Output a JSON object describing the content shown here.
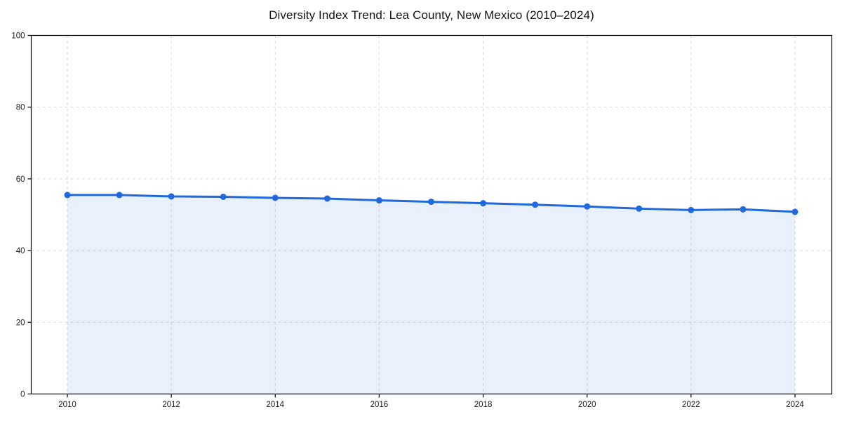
{
  "chart_data": {
    "type": "line",
    "title": "Diversity Index Trend: Lea County, New Mexico (2010–2024)",
    "x": [
      2010,
      2011,
      2012,
      2013,
      2014,
      2015,
      2016,
      2017,
      2018,
      2019,
      2020,
      2021,
      2022,
      2023,
      2024
    ],
    "series": [
      {
        "name": "Diversity Index",
        "values": [
          55.5,
          55.5,
          55.1,
          55.0,
          54.7,
          54.5,
          54.0,
          53.6,
          53.2,
          52.8,
          52.3,
          51.7,
          51.3,
          51.5,
          50.8
        ]
      }
    ],
    "xlabel": "",
    "ylabel": "",
    "ylim": [
      0,
      100
    ],
    "yticks": [
      0,
      20,
      40,
      60,
      80,
      100
    ],
    "ytick_labels": [
      "0",
      "20",
      "40",
      "60",
      "80",
      "100"
    ],
    "xticks": [
      2010,
      2012,
      2014,
      2016,
      2018,
      2020,
      2022,
      2024
    ],
    "xtick_labels": [
      "2010",
      "2012",
      "2014",
      "2016",
      "2018",
      "2020",
      "2022",
      "2024"
    ],
    "grid": true,
    "grid_style": "dashed",
    "legend_position": "none",
    "marker": "circle",
    "colors": {
      "line": "#2068de",
      "marker": "#2068de",
      "fill": "rgba(32, 104, 222, 0.10)",
      "grid": "#d9d9d9",
      "axis": "#000000",
      "tick_label": "#1a1a1a",
      "title": "#141414",
      "background": "#ffffff"
    }
  }
}
